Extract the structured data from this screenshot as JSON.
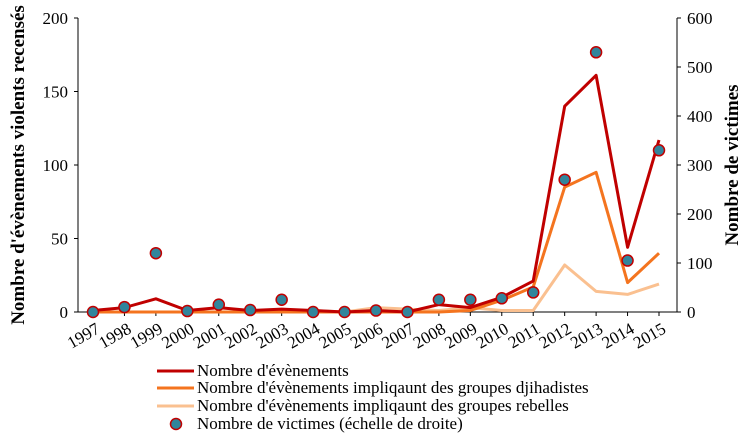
{
  "chart_data": {
    "type": "line",
    "categories": [
      "1997",
      "1998",
      "1999",
      "2000",
      "2001",
      "2002",
      "2003",
      "2004",
      "2005",
      "2006",
      "2007",
      "2008",
      "2009",
      "2010",
      "2011",
      "2012",
      "2013",
      "2014",
      "2015"
    ],
    "ylabel_left": "Nombre d'évènements violents recensés",
    "ylabel_right": "Nombre de victimes",
    "ylim_left": [
      0,
      200
    ],
    "ylim_right": [
      0,
      600
    ],
    "yticks_left": [
      "0",
      "50",
      "100",
      "150",
      "200"
    ],
    "yticks_right": [
      "0",
      "100",
      "200",
      "300",
      "400",
      "500",
      "600"
    ],
    "grid": false,
    "legend_position": "bottom",
    "series": [
      {
        "name": "Nombre d'évènements",
        "axis": "left",
        "kind": "line",
        "color": "#c00000",
        "values": [
          1,
          3,
          9,
          1,
          3,
          1,
          2,
          1,
          0,
          1,
          0,
          5,
          3,
          10,
          21,
          140,
          161,
          44,
          117
        ]
      },
      {
        "name": "Nombre d'évènements impliqaunt des groupes djihadistes",
        "axis": "left",
        "kind": "line",
        "color": "#f4741f",
        "values": [
          0,
          0,
          0,
          0,
          0,
          0,
          0,
          0,
          0,
          0,
          0,
          0,
          1,
          8,
          17,
          85,
          95,
          20,
          40
        ]
      },
      {
        "name": "Nombre d'évènements impliqaunt des groupes rebelles",
        "axis": "left",
        "kind": "line",
        "color": "#fac090",
        "values": [
          0,
          0,
          0,
          0,
          0,
          0,
          1,
          1,
          0,
          3,
          2,
          1,
          3,
          1,
          1,
          32,
          14,
          12,
          19
        ]
      },
      {
        "name": "Nombre de victimes (échelle de droite)",
        "axis": "right",
        "kind": "scatter",
        "color": "#31859c",
        "edge": "#c00000",
        "values": [
          0,
          10,
          120,
          2,
          15,
          4,
          25,
          0,
          0,
          3,
          0,
          25,
          25,
          28,
          40,
          270,
          530,
          105,
          330
        ]
      }
    ]
  }
}
